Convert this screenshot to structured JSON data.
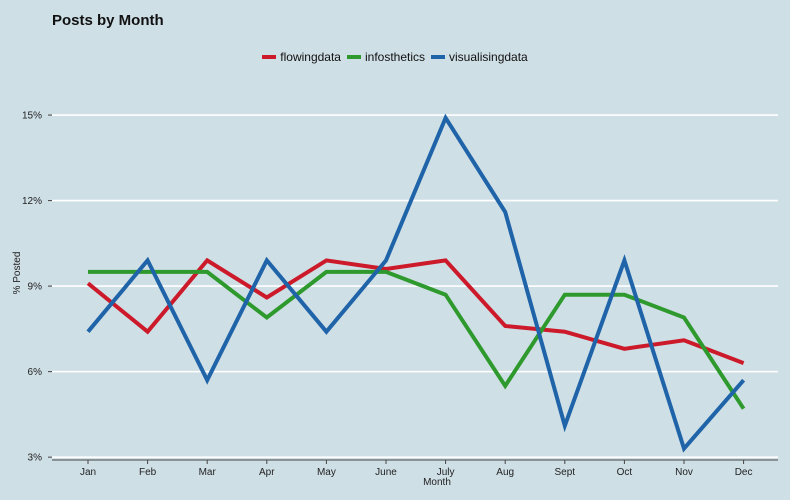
{
  "chart_data": {
    "type": "line",
    "title": "Posts by Month",
    "xlabel": "Month",
    "ylabel": "% Posted",
    "categories": [
      "Jan",
      "Feb",
      "Mar",
      "Apr",
      "May",
      "June",
      "July",
      "Aug",
      "Sept",
      "Oct",
      "Nov",
      "Dec"
    ],
    "ylim": [
      2.9,
      16.3
    ],
    "yticks": [
      3,
      6,
      9,
      12,
      15
    ],
    "ytick_labels": [
      "3%",
      "6%",
      "9%",
      "12%",
      "15%"
    ],
    "grid": true,
    "legend_position": "top-center",
    "series": [
      {
        "name": "flowingdata",
        "color": "#cc1a2a",
        "values": [
          9.1,
          7.4,
          9.9,
          8.6,
          9.9,
          9.6,
          9.9,
          7.6,
          7.4,
          6.8,
          7.1,
          6.3
        ]
      },
      {
        "name": "infosthetics",
        "color": "#2e9a2e",
        "values": [
          9.5,
          9.5,
          9.5,
          7.9,
          9.5,
          9.5,
          8.7,
          5.5,
          8.7,
          8.7,
          7.9,
          4.7
        ]
      },
      {
        "name": "visualisingdata",
        "color": "#1f63a8",
        "values": [
          7.4,
          9.9,
          5.7,
          9.9,
          7.4,
          9.9,
          14.9,
          11.6,
          4.1,
          9.9,
          3.3,
          5.7
        ]
      }
    ]
  }
}
